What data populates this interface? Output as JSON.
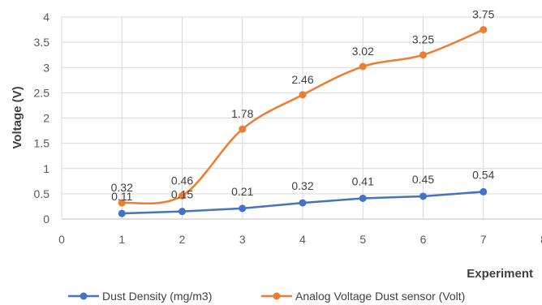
{
  "chart_data": {
    "type": "line",
    "title": "",
    "xlabel": "Experiment",
    "ylabel": "Voltage (V)",
    "xlim": [
      0,
      8
    ],
    "ylim": [
      0,
      4
    ],
    "x_ticks": [
      "0",
      "1",
      "2",
      "3",
      "4",
      "5",
      "6",
      "7",
      "8"
    ],
    "y_ticks": [
      "0",
      "0.5",
      "1",
      "1.5",
      "2",
      "2.5",
      "3",
      "3.5",
      "4"
    ],
    "grid": "horizontal",
    "legend_position": "bottom",
    "series": [
      {
        "name": "Dust Density (mg/m3)",
        "color": "#4472C4",
        "smooth": false,
        "x": [
          1,
          2,
          3,
          4,
          5,
          6,
          7
        ],
        "values": [
          0.11,
          0.15,
          0.21,
          0.32,
          0.41,
          0.45,
          0.54
        ],
        "labels": [
          "0.11",
          "0.15",
          "0.21",
          "0.32",
          "0.41",
          "0.45",
          "0.54"
        ]
      },
      {
        "name": "Analog Voltage Dust sensor (Volt)",
        "color": "#ED7D31",
        "smooth": true,
        "x": [
          1,
          2,
          3,
          4,
          5,
          6,
          7
        ],
        "values": [
          0.32,
          0.46,
          1.78,
          2.46,
          3.02,
          3.25,
          3.75
        ],
        "labels": [
          "0.32",
          "0.46",
          "1.78",
          "2.46",
          "3.02",
          "3.25",
          "3.75"
        ]
      }
    ]
  }
}
